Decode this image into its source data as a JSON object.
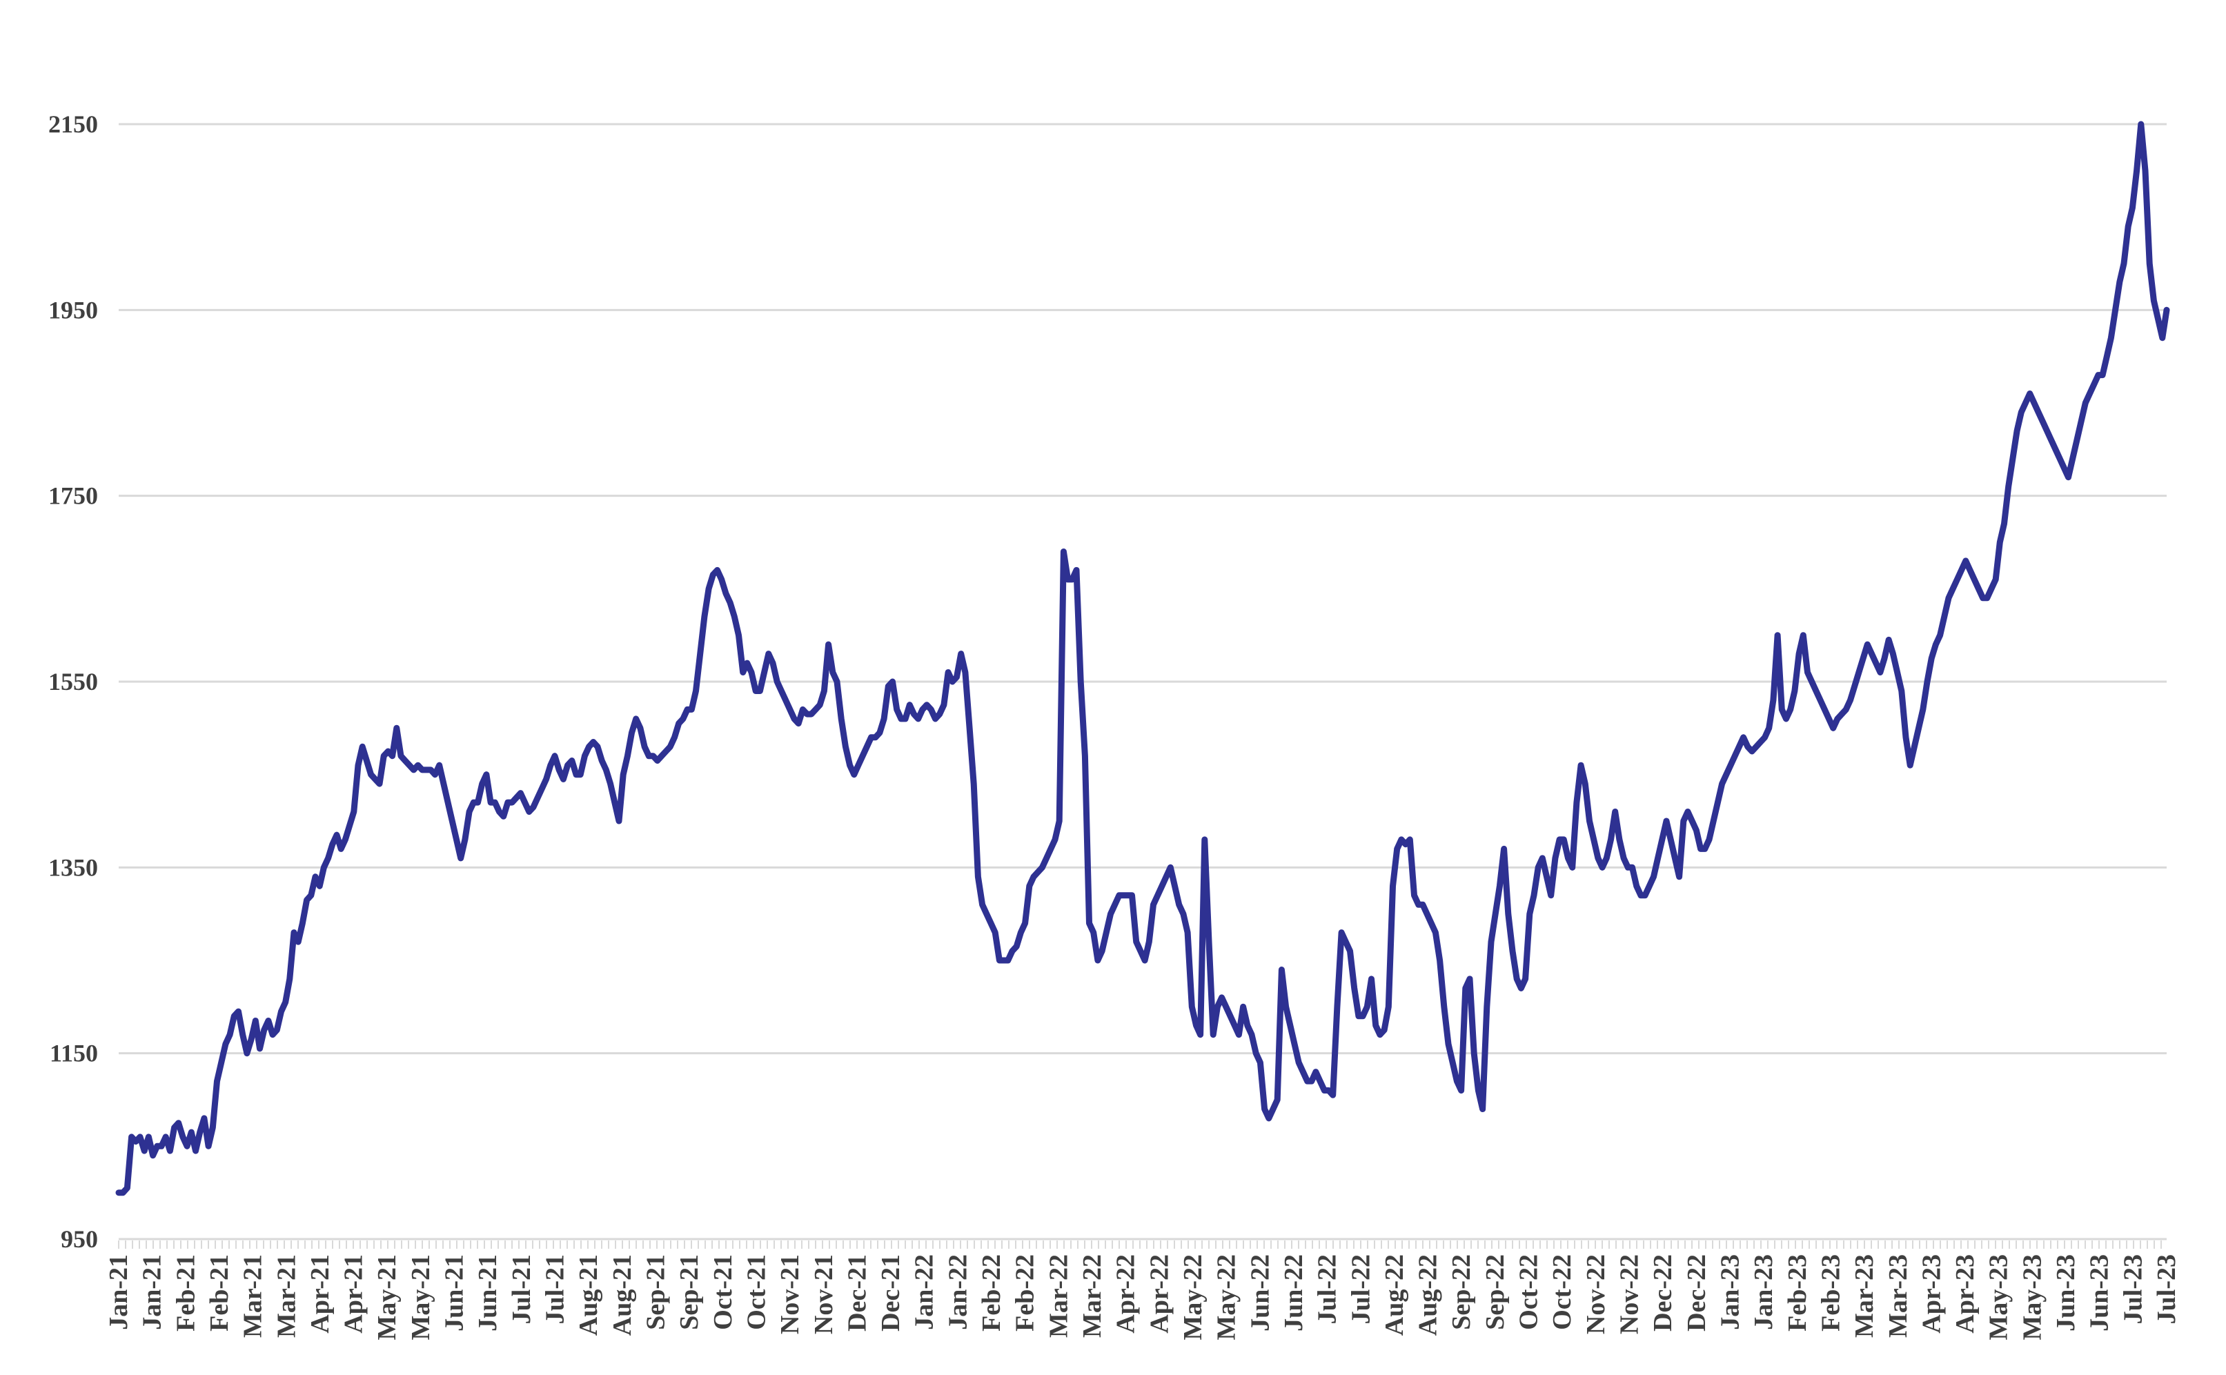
{
  "chart_data": {
    "type": "line",
    "title": "",
    "xlabel": "",
    "ylabel": "",
    "ylim": [
      950,
      2150
    ],
    "yticks": [
      950,
      1150,
      1350,
      1550,
      1750,
      1950,
      2150
    ],
    "grid": true,
    "legend": "none",
    "colors": {
      "series": "#2e3192",
      "grid": "#d9d9d9",
      "text": "#3f3f3f"
    },
    "x_tick_labels": [
      "Jan-21",
      "Jan-21",
      "Feb-21",
      "Feb-21",
      "Mar-21",
      "Mar-21",
      "Apr-21",
      "Apr-21",
      "May-21",
      "May-21",
      "Jun-21",
      "Jun-21",
      "Jul-21",
      "Jul-21",
      "Aug-21",
      "Aug-21",
      "Sep-21",
      "Sep-21",
      "Oct-21",
      "Oct-21",
      "Nov-21",
      "Nov-21",
      "Dec-21",
      "Dec-21",
      "Jan-22",
      "Jan-22",
      "Feb-22",
      "Feb-22",
      "Mar-22",
      "Mar-22",
      "Apr-22",
      "Apr-22",
      "May-22",
      "May-22",
      "Jun-22",
      "Jun-22",
      "Jul-22",
      "Jul-22",
      "Aug-22",
      "Aug-22",
      "Sep-22",
      "Sep-22",
      "Oct-22",
      "Oct-22",
      "Nov-22",
      "Nov-22",
      "Dec-22",
      "Dec-22",
      "Jan-23",
      "Jan-23",
      "Feb-23",
      "Feb-23",
      "Mar-23",
      "Mar-23",
      "Apr-23",
      "Apr-23",
      "May-23",
      "May-23",
      "Jun-23",
      "Jun-23",
      "Jul-23",
      "Jul-23"
    ],
    "series": [
      {
        "values": [
          1000,
          1000,
          1005,
          1060,
          1055,
          1060,
          1045,
          1060,
          1040,
          1050,
          1050,
          1060,
          1045,
          1070,
          1075,
          1060,
          1050,
          1065,
          1045,
          1065,
          1080,
          1050,
          1070,
          1120,
          1140,
          1160,
          1170,
          1190,
          1195,
          1170,
          1150,
          1165,
          1185,
          1155,
          1175,
          1185,
          1170,
          1175,
          1195,
          1205,
          1230,
          1280,
          1270,
          1290,
          1315,
          1320,
          1340,
          1330,
          1350,
          1360,
          1375,
          1385,
          1370,
          1380,
          1395,
          1410,
          1460,
          1480,
          1465,
          1450,
          1445,
          1440,
          1470,
          1475,
          1470,
          1500,
          1470,
          1465,
          1460,
          1455,
          1460,
          1455,
          1455,
          1455,
          1450,
          1460,
          1440,
          1420,
          1400,
          1380,
          1360,
          1380,
          1410,
          1420,
          1420,
          1440,
          1450,
          1420,
          1420,
          1410,
          1405,
          1420,
          1420,
          1425,
          1430,
          1420,
          1410,
          1415,
          1425,
          1435,
          1445,
          1460,
          1470,
          1455,
          1445,
          1460,
          1465,
          1450,
          1450,
          1470,
          1480,
          1485,
          1480,
          1465,
          1455,
          1440,
          1420,
          1400,
          1450,
          1470,
          1495,
          1510,
          1500,
          1480,
          1470,
          1470,
          1465,
          1470,
          1475,
          1480,
          1490,
          1505,
          1510,
          1520,
          1520,
          1540,
          1580,
          1620,
          1650,
          1665,
          1670,
          1660,
          1645,
          1635,
          1620,
          1600,
          1560,
          1570,
          1560,
          1540,
          1540,
          1560,
          1580,
          1570,
          1550,
          1540,
          1530,
          1520,
          1510,
          1505,
          1520,
          1515,
          1515,
          1520,
          1525,
          1540,
          1590,
          1560,
          1550,
          1510,
          1480,
          1460,
          1450,
          1460,
          1470,
          1480,
          1490,
          1490,
          1495,
          1510,
          1545,
          1550,
          1520,
          1510,
          1510,
          1525,
          1515,
          1510,
          1520,
          1525,
          1520,
          1510,
          1515,
          1525,
          1560,
          1550,
          1555,
          1580,
          1560,
          1500,
          1440,
          1340,
          1310,
          1300,
          1290,
          1280,
          1250,
          1250,
          1250,
          1260,
          1265,
          1280,
          1290,
          1330,
          1340,
          1345,
          1350,
          1360,
          1370,
          1380,
          1400,
          1690,
          1660,
          1660,
          1670,
          1550,
          1470,
          1290,
          1280,
          1250,
          1260,
          1280,
          1300,
          1310,
          1320,
          1320,
          1320,
          1320,
          1270,
          1260,
          1250,
          1270,
          1310,
          1320,
          1330,
          1340,
          1350,
          1330,
          1310,
          1300,
          1280,
          1200,
          1180,
          1170,
          1380,
          1270,
          1170,
          1200,
          1210,
          1200,
          1190,
          1180,
          1170,
          1200,
          1180,
          1170,
          1150,
          1140,
          1090,
          1080,
          1090,
          1100,
          1240,
          1200,
          1180,
          1160,
          1140,
          1130,
          1120,
          1120,
          1130,
          1120,
          1110,
          1110,
          1105,
          1200,
          1280,
          1270,
          1260,
          1220,
          1190,
          1190,
          1200,
          1230,
          1180,
          1170,
          1175,
          1200,
          1330,
          1370,
          1380,
          1375,
          1380,
          1320,
          1310,
          1310,
          1300,
          1290,
          1280,
          1250,
          1200,
          1160,
          1140,
          1120,
          1110,
          1220,
          1230,
          1150,
          1110,
          1090,
          1200,
          1270,
          1300,
          1330,
          1370,
          1300,
          1260,
          1230,
          1220,
          1230,
          1300,
          1320,
          1350,
          1360,
          1340,
          1320,
          1360,
          1380,
          1380,
          1360,
          1350,
          1420,
          1460,
          1440,
          1400,
          1380,
          1360,
          1350,
          1360,
          1380,
          1410,
          1380,
          1360,
          1350,
          1350,
          1330,
          1320,
          1320,
          1330,
          1340,
          1360,
          1380,
          1400,
          1380,
          1360,
          1340,
          1400,
          1410,
          1400,
          1390,
          1370,
          1370,
          1380,
          1400,
          1420,
          1440,
          1450,
          1460,
          1470,
          1480,
          1490,
          1480,
          1475,
          1480,
          1485,
          1490,
          1500,
          1530,
          1600,
          1520,
          1510,
          1520,
          1540,
          1580,
          1600,
          1560,
          1550,
          1540,
          1530,
          1520,
          1510,
          1500,
          1510,
          1515,
          1520,
          1530,
          1545,
          1560,
          1575,
          1590,
          1580,
          1570,
          1560,
          1575,
          1595,
          1580,
          1560,
          1540,
          1490,
          1460,
          1480,
          1500,
          1520,
          1550,
          1575,
          1590,
          1600,
          1620,
          1640,
          1650,
          1660,
          1670,
          1680,
          1670,
          1660,
          1650,
          1640,
          1640,
          1650,
          1660,
          1700,
          1720,
          1760,
          1790,
          1820,
          1840,
          1850,
          1860,
          1850,
          1840,
          1830,
          1820,
          1810,
          1800,
          1790,
          1780,
          1770,
          1790,
          1810,
          1830,
          1850,
          1860,
          1870,
          1880,
          1880,
          1900,
          1920,
          1950,
          1980,
          2000,
          2040,
          2060,
          2100,
          2150,
          2100,
          2000,
          1960,
          1940,
          1920,
          1950
        ]
      }
    ]
  }
}
